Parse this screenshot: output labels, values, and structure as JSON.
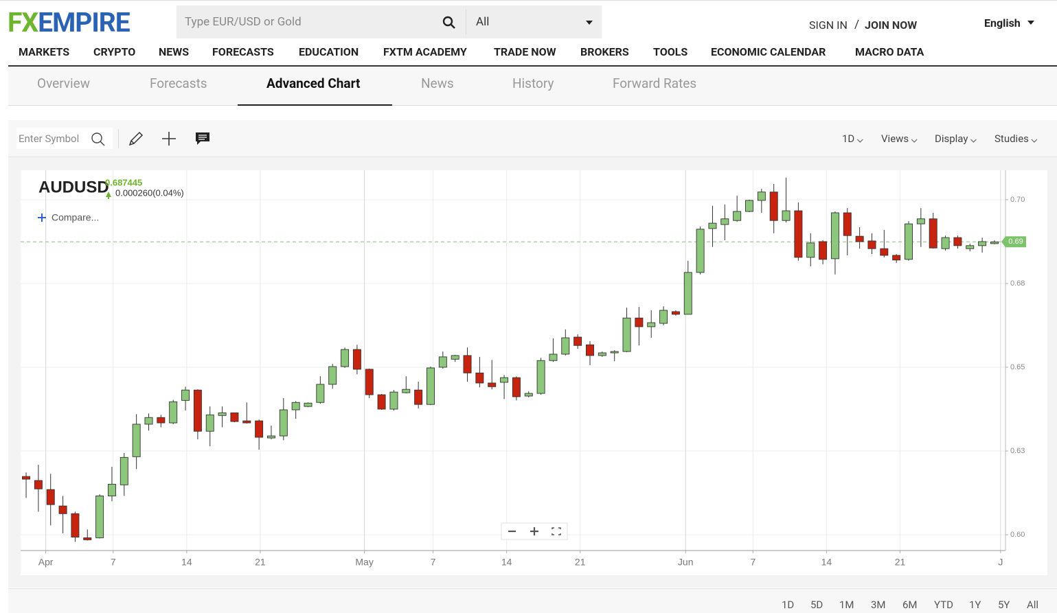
{
  "header": {
    "logo_fx": "FX",
    "logo_empire": "EMPIRE",
    "search_placeholder": "Type EUR/USD or Gold",
    "search_scope": "All",
    "sign_in": "SIGN IN",
    "separator": "/",
    "join_now": "JOIN NOW",
    "language": "English"
  },
  "nav": [
    "MARKETS",
    "CRYPTO",
    "NEWS",
    "FORECASTS",
    "EDUCATION",
    "FXTM ACADEMY",
    "TRADE NOW",
    "BROKERS",
    "TOOLS",
    "ECONOMIC CALENDAR",
    "MACRO DATA"
  ],
  "tabs": [
    "Overview",
    "Forecasts",
    "Advanced Chart",
    "News",
    "History",
    "Forward Rates"
  ],
  "toolbar": {
    "symbol_placeholder": "Enter Symbol",
    "menus": [
      "1D",
      "Views",
      "Display",
      "Studies"
    ]
  },
  "quote": {
    "symbol": "AUDUSD",
    "price": "0.687445",
    "change": "0.000260(0.04%)",
    "compare": "Compare..."
  },
  "chart_data": {
    "type": "candlestick",
    "up_color": "#8dc77b",
    "down_color": "#c8230f",
    "ohlc": [
      [
        0.6174,
        0.6186,
        0.611,
        0.6166
      ],
      [
        0.6162,
        0.6209,
        0.6069,
        0.6137
      ],
      [
        0.6135,
        0.6182,
        0.6028,
        0.609
      ],
      [
        0.6086,
        0.6116,
        0.6004,
        0.6063
      ],
      [
        0.6063,
        0.6069,
        0.5979,
        0.5993
      ],
      [
        0.5991,
        0.6016,
        0.5983,
        0.5985
      ],
      [
        0.5991,
        0.6121,
        0.5989,
        0.6116
      ],
      [
        0.6116,
        0.6203,
        0.61,
        0.6151
      ],
      [
        0.6149,
        0.6244,
        0.6116,
        0.6231
      ],
      [
        0.6233,
        0.636,
        0.6196,
        0.633
      ],
      [
        0.633,
        0.6362,
        0.6311,
        0.635
      ],
      [
        0.635,
        0.6358,
        0.6321,
        0.6334
      ],
      [
        0.6334,
        0.6403,
        0.633,
        0.6397
      ],
      [
        0.6401,
        0.6442,
        0.6371,
        0.6432
      ],
      [
        0.6432,
        0.6434,
        0.6285,
        0.6309
      ],
      [
        0.6309,
        0.6383,
        0.6264,
        0.6358
      ],
      [
        0.6356,
        0.6383,
        0.6321,
        0.6364
      ],
      [
        0.6364,
        0.6364,
        0.6336,
        0.6338
      ],
      [
        0.634,
        0.6395,
        0.6332,
        0.6334
      ],
      [
        0.634,
        0.6344,
        0.6254,
        0.6291
      ],
      [
        0.6289,
        0.6326,
        0.6285,
        0.6295
      ],
      [
        0.6295,
        0.6408,
        0.6282,
        0.6373
      ],
      [
        0.6373,
        0.6399,
        0.6346,
        0.6395
      ],
      [
        0.6383,
        0.6395,
        0.6381,
        0.6393
      ],
      [
        0.6395,
        0.6473,
        0.6391,
        0.6449
      ],
      [
        0.6449,
        0.651,
        0.6436,
        0.6502
      ],
      [
        0.6502,
        0.6559,
        0.6498,
        0.6553
      ],
      [
        0.6553,
        0.6567,
        0.6479,
        0.6494
      ],
      [
        0.6494,
        0.6496,
        0.6408,
        0.6418
      ],
      [
        0.6418,
        0.642,
        0.6373,
        0.6375
      ],
      [
        0.6375,
        0.6432,
        0.6371,
        0.6426
      ],
      [
        0.6424,
        0.6473,
        0.6422,
        0.6434
      ],
      [
        0.6432,
        0.6457,
        0.6377,
        0.6389
      ],
      [
        0.6389,
        0.6502,
        0.6387,
        0.6498
      ],
      [
        0.65,
        0.6547,
        0.6496,
        0.6531
      ],
      [
        0.6524,
        0.6537,
        0.6516,
        0.6535
      ],
      [
        0.6535,
        0.6559,
        0.6457,
        0.6483
      ],
      [
        0.6483,
        0.6531,
        0.644,
        0.6453
      ],
      [
        0.6453,
        0.6522,
        0.6434,
        0.6442
      ],
      [
        0.6455,
        0.6477,
        0.6405,
        0.6469
      ],
      [
        0.6469,
        0.6473,
        0.6401,
        0.6412
      ],
      [
        0.6414,
        0.6428,
        0.641,
        0.6422
      ],
      [
        0.6422,
        0.6528,
        0.6418,
        0.652
      ],
      [
        0.652,
        0.6586,
        0.6516,
        0.6539
      ],
      [
        0.6539,
        0.6613,
        0.6535,
        0.6588
      ],
      [
        0.659,
        0.6598,
        0.6555,
        0.6565
      ],
      [
        0.6567,
        0.6578,
        0.6506,
        0.6535
      ],
      [
        0.6535,
        0.6547,
        0.6531,
        0.6543
      ],
      [
        0.6543,
        0.6551,
        0.6518,
        0.6547
      ],
      [
        0.6547,
        0.6678,
        0.6545,
        0.6647
      ],
      [
        0.6647,
        0.668,
        0.6565,
        0.6621
      ],
      [
        0.6621,
        0.667,
        0.6588,
        0.6633
      ],
      [
        0.6631,
        0.6682,
        0.6625,
        0.667
      ],
      [
        0.6666,
        0.667,
        0.6654,
        0.6658
      ],
      [
        0.6658,
        0.6818,
        0.6658,
        0.6783
      ],
      [
        0.6783,
        0.692,
        0.6777,
        0.6912
      ],
      [
        0.6914,
        0.6982,
        0.6859,
        0.693
      ],
      [
        0.6926,
        0.6986,
        0.6879,
        0.6943
      ],
      [
        0.6938,
        0.7012,
        0.6934,
        0.6965
      ],
      [
        0.6965,
        0.7,
        0.6963,
        0.6998
      ],
      [
        0.6998,
        0.7033,
        0.6961,
        0.7023
      ],
      [
        0.7023,
        0.7047,
        0.69,
        0.6938
      ],
      [
        0.6938,
        0.7066,
        0.6932,
        0.6967
      ],
      [
        0.6967,
        0.6992,
        0.6818,
        0.6828
      ],
      [
        0.6828,
        0.69,
        0.6801,
        0.6871
      ],
      [
        0.6875,
        0.6879,
        0.6807,
        0.6822
      ],
      [
        0.6824,
        0.6965,
        0.6777,
        0.6961
      ],
      [
        0.6961,
        0.6975,
        0.6834,
        0.6893
      ],
      [
        0.6891,
        0.6918,
        0.6854,
        0.6875
      ],
      [
        0.6877,
        0.69,
        0.6838,
        0.6854
      ],
      [
        0.6854,
        0.691,
        0.6828,
        0.6834
      ],
      [
        0.6834,
        0.6838,
        0.6811,
        0.682
      ],
      [
        0.6822,
        0.6936,
        0.6818,
        0.6928
      ],
      [
        0.6928,
        0.6975,
        0.6859,
        0.6943
      ],
      [
        0.6943,
        0.6961,
        0.6854,
        0.6856
      ],
      [
        0.6854,
        0.6893,
        0.6848,
        0.6887
      ],
      [
        0.6887,
        0.6893,
        0.6854,
        0.6863
      ],
      [
        0.6854,
        0.6869,
        0.6846,
        0.6863
      ],
      [
        0.6863,
        0.6887,
        0.6842,
        0.6875
      ],
      [
        0.6869,
        0.6879,
        0.6867,
        0.6874
      ]
    ],
    "xlim": [
      -0.45,
      79.9
    ],
    "xticks": [
      {
        "value": 1.6,
        "label": "Apr"
      },
      {
        "value": 7.1,
        "label": "7"
      },
      {
        "value": 13.1,
        "label": "14"
      },
      {
        "value": 19.1,
        "label": "21"
      },
      {
        "value": 27.6,
        "label": "May"
      },
      {
        "value": 33.2,
        "label": "7"
      },
      {
        "value": 39.2,
        "label": "14"
      },
      {
        "value": 45.2,
        "label": "21"
      },
      {
        "value": 53.8,
        "label": "Jun"
      },
      {
        "value": 59.3,
        "label": "7"
      },
      {
        "value": 65.3,
        "label": "14"
      },
      {
        "value": 71.3,
        "label": "21"
      },
      {
        "value": 79.5,
        "label": "J"
      }
    ],
    "ylim": [
      0.5953,
      0.7088
    ],
    "yticks": [
      {
        "value": 0.6,
        "label": "0.60"
      },
      {
        "value": 0.625,
        "label": "0.63"
      },
      0.65,
      {
        "value": 0.675,
        "label": "0.68"
      },
      {
        "value": 0.7,
        "label": "0.70"
      }
    ],
    "grid": true,
    "price_line": {
      "value": 0.687445,
      "label": "0.69",
      "color": "#7dc36b"
    }
  },
  "ranges": [
    "1D",
    "5D",
    "1M",
    "3M",
    "6M",
    "YTD",
    "1Y",
    "5Y",
    "All"
  ]
}
